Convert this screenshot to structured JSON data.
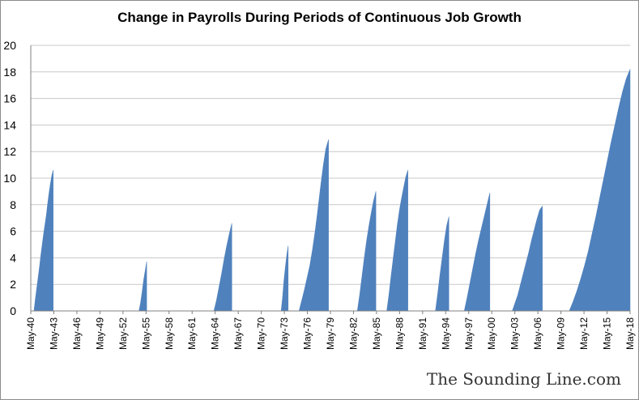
{
  "chart_data": {
    "type": "area",
    "title": "Change in Payrolls During Periods of Continuous Job Growth",
    "xlabel": "",
    "ylabel": "",
    "ylim": [
      0,
      20
    ],
    "yticks": [
      0,
      2,
      4,
      6,
      8,
      10,
      12,
      14,
      16,
      18,
      20
    ],
    "xlim_months": [
      "May-40",
      "May-18"
    ],
    "x_tick_labels": [
      "May-40",
      "May-43",
      "May-46",
      "May-49",
      "May-52",
      "May-55",
      "May-58",
      "May-61",
      "May-64",
      "May-67",
      "May-70",
      "May-73",
      "May-76",
      "May-79",
      "May-82",
      "May-85",
      "May-88",
      "May-91",
      "May-94",
      "May-97",
      "May-00",
      "May-03",
      "May-06",
      "May-09",
      "May-12",
      "May-15",
      "May-18"
    ],
    "grid": "horizontal",
    "legend": "none",
    "series_color": "#4f81bd",
    "series": [
      {
        "start": "Oct-40",
        "end": "Apr-43",
        "values": [
          0,
          0.9,
          1.7,
          2.5,
          3.3,
          4.2,
          5.0,
          5.8,
          6.5,
          7.2,
          8.1,
          8.9,
          9.6,
          10.2,
          10.6
        ]
      },
      {
        "start": "Jun-54",
        "end": "Jun-55",
        "values": [
          0,
          0.6,
          1.4,
          2.3,
          3.0,
          3.7
        ]
      },
      {
        "start": "Mar-64",
        "end": "Jul-66",
        "values": [
          0,
          0.8,
          1.8,
          2.8,
          3.9,
          4.9,
          5.8,
          6.6
        ]
      },
      {
        "start": "Dec-72",
        "end": "Nov-73",
        "values": [
          0,
          1.0,
          2.3,
          3.3,
          4.2,
          4.9
        ]
      },
      {
        "start": "Apr-75",
        "end": "Feb-79",
        "values": [
          0,
          0.8,
          1.6,
          2.5,
          3.4,
          4.6,
          6.0,
          7.6,
          9.3,
          10.9,
          12.2,
          12.9
        ]
      },
      {
        "start": "Nov-82",
        "end": "Apr-85",
        "values": [
          0,
          1.2,
          2.6,
          4.0,
          5.3,
          6.4,
          7.4,
          8.3,
          9.0
        ]
      },
      {
        "start": "Sep-86",
        "end": "Jun-89",
        "values": [
          0,
          1.2,
          2.6,
          3.9,
          5.2,
          6.5,
          7.6,
          8.5,
          9.3,
          10.1,
          10.6
        ]
      },
      {
        "start": "Jan-93",
        "end": "Oct-94",
        "values": [
          0,
          1.3,
          2.7,
          4.0,
          5.3,
          6.4,
          7.1
        ]
      },
      {
        "start": "Oct-96",
        "end": "Feb-00",
        "values": [
          0,
          1.0,
          2.1,
          3.2,
          4.3,
          5.3,
          6.2,
          7.1,
          8.0,
          8.9
        ]
      },
      {
        "start": "Jan-03",
        "end": "Dec-06",
        "values": [
          0,
          0.6,
          1.2,
          2.0,
          2.8,
          3.6,
          4.4,
          5.3,
          6.1,
          6.9,
          7.6,
          7.9
        ]
      },
      {
        "start": "Jun-10",
        "end": "May-18",
        "values": [
          0,
          0.7,
          1.5,
          2.4,
          3.4,
          4.5,
          5.8,
          7.1,
          8.5,
          9.9,
          11.3,
          12.7,
          14.0,
          15.3,
          16.5,
          17.5,
          18.2
        ]
      }
    ]
  },
  "watermark": "The Sounding Line.com"
}
